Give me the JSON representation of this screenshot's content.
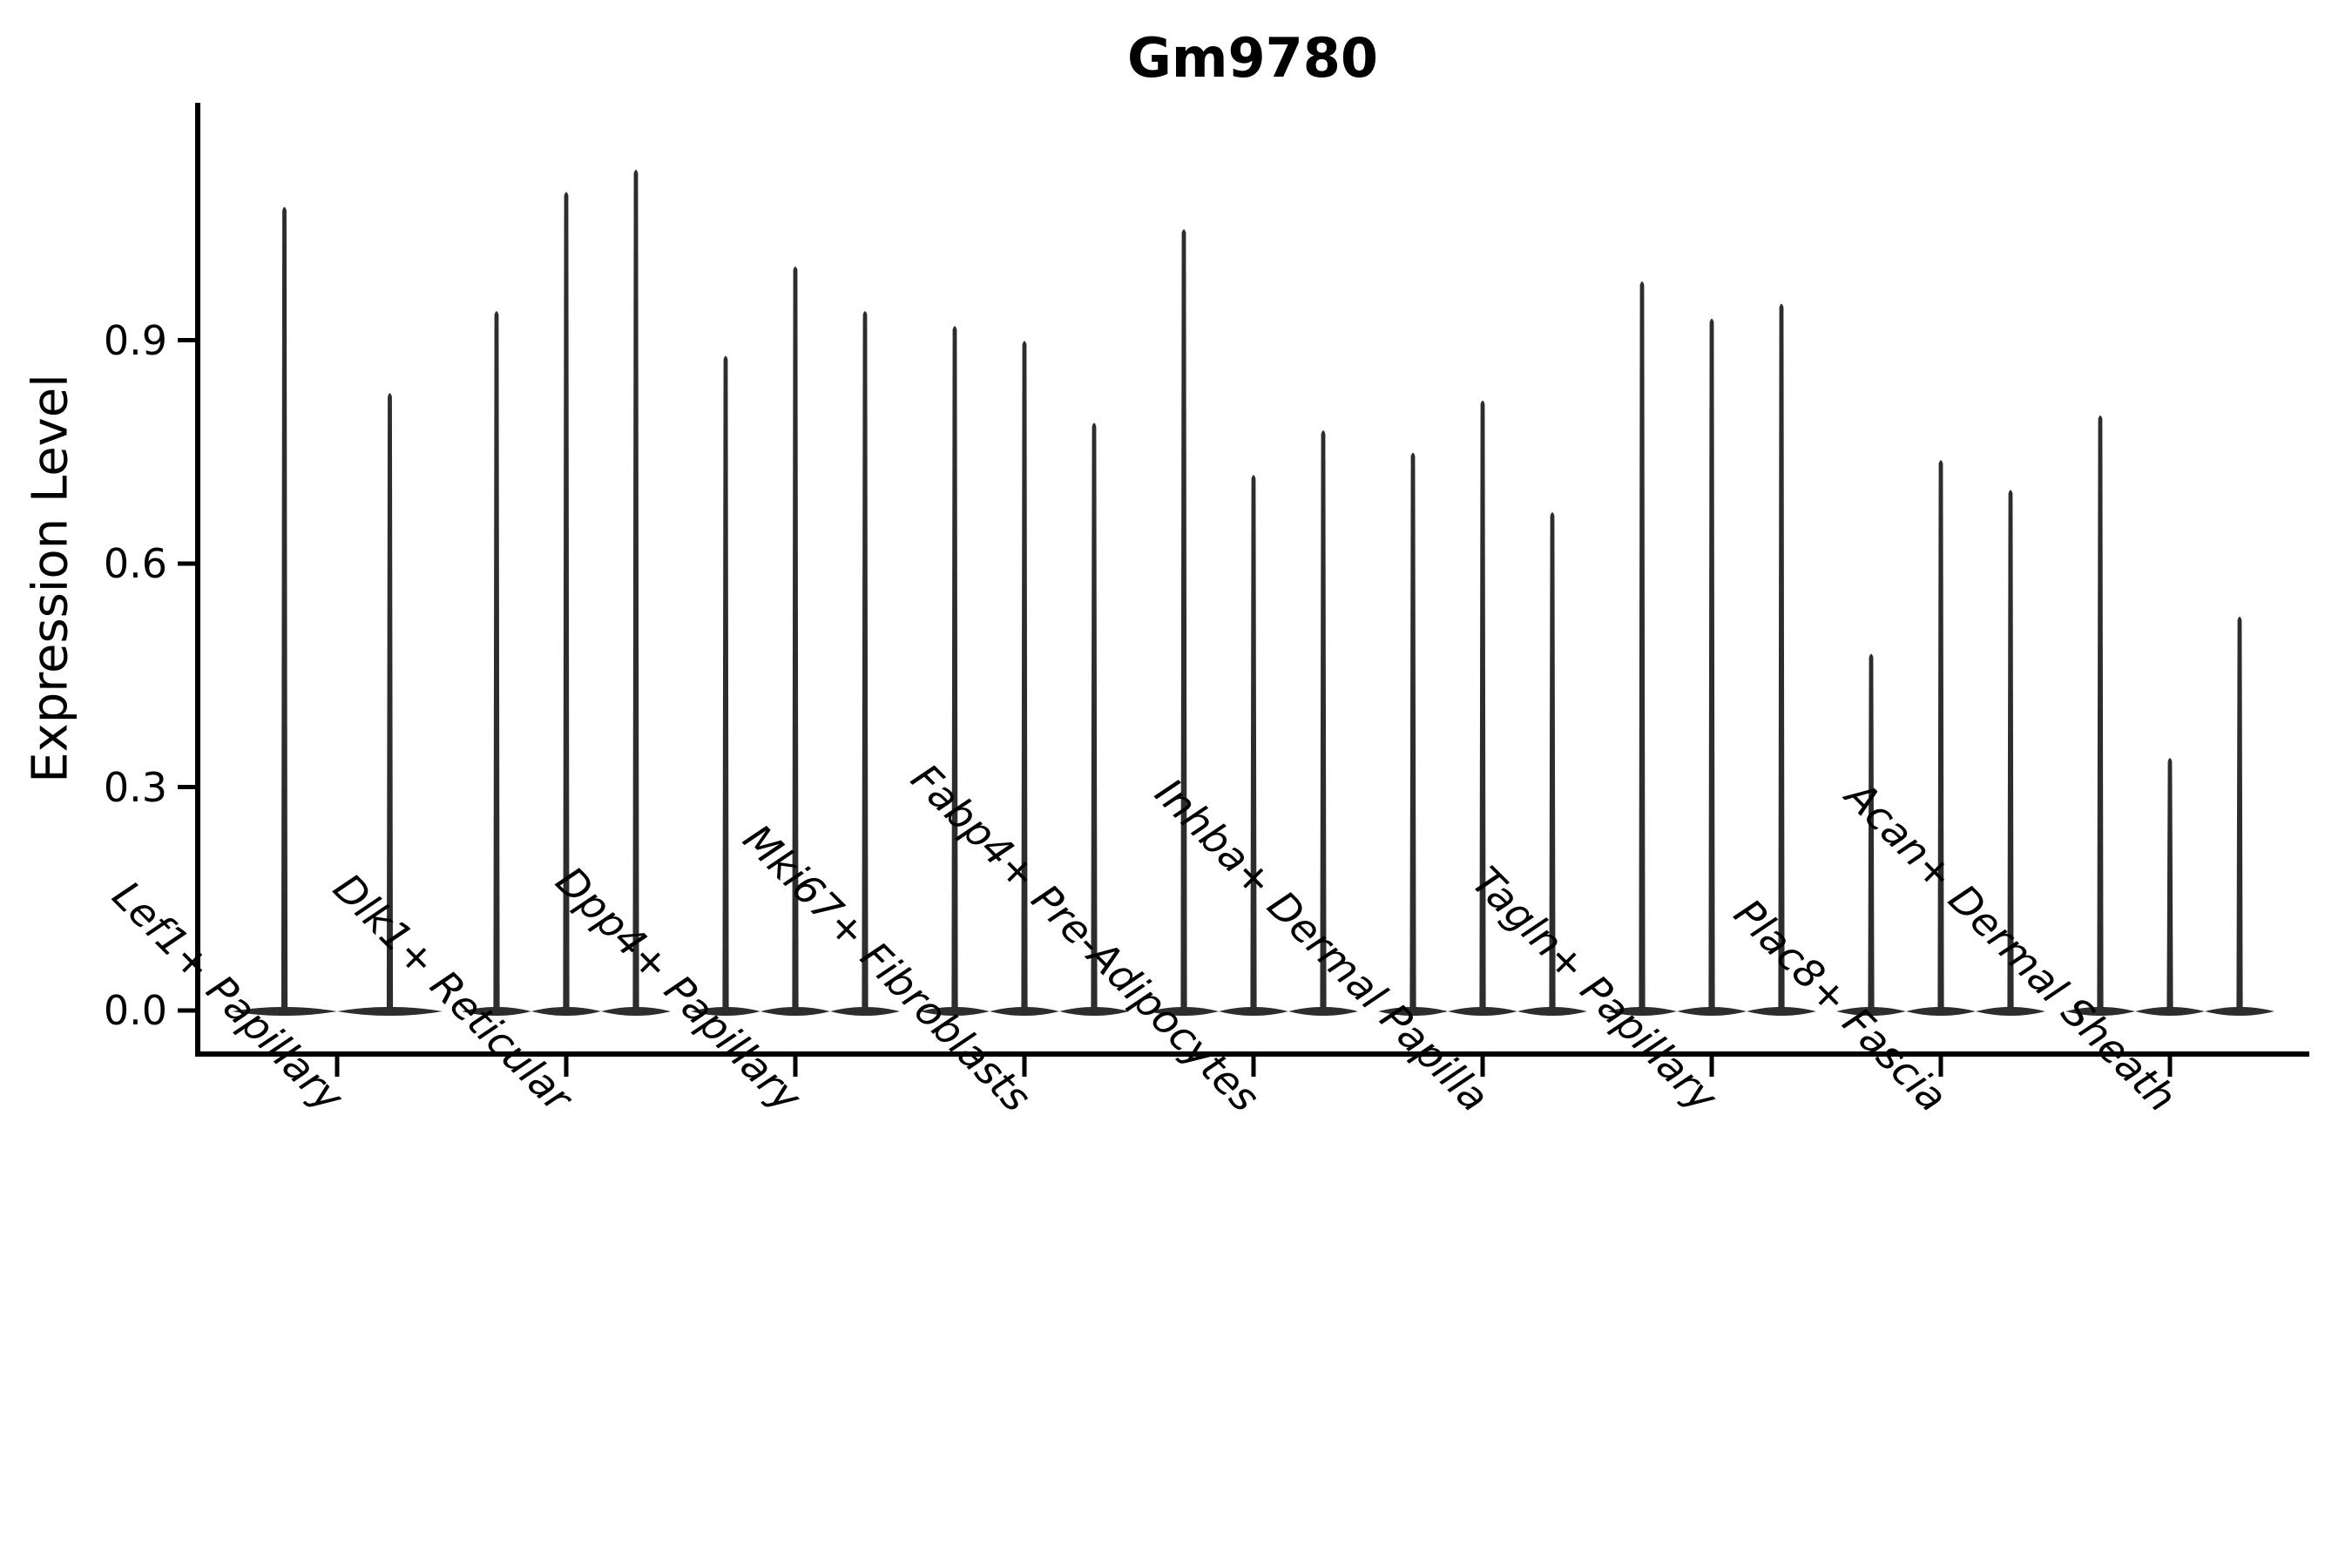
{
  "chart_data": {
    "type": "violin",
    "title": "Gm9780",
    "ylabel": "Expression Level",
    "xlabel": "",
    "ylim": [
      -0.06,
      1.22
    ],
    "yticks": [
      0.0,
      0.3,
      0.6,
      0.9
    ],
    "ytick_labels": [
      "0.0",
      "0.3",
      "0.6",
      "0.9"
    ],
    "grid": false,
    "legend": null,
    "categories": [
      "Lef1+ Papillary",
      "Dlk1+ Reticular",
      "Dpp4+ Papillary",
      "Mki67+ Fibroblasts",
      "Fabp4+ Pre-Adipocytes",
      "Inhba+ Dermal Papilla",
      "Tagln+ Papillary",
      "Plac8+ Fascia",
      "Acan+ Dermal Sheath"
    ],
    "series": [
      {
        "category": "Lef1+ Papillary",
        "violin_max_expression": [
          1.08,
          0.83
        ]
      },
      {
        "category": "Dlk1+ Reticular",
        "violin_max_expression": [
          0.94,
          1.1,
          1.13
        ]
      },
      {
        "category": "Dpp4+ Papillary",
        "violin_max_expression": [
          0.88,
          1.0,
          0.94
        ]
      },
      {
        "category": "Mki67+ Fibroblasts",
        "violin_max_expression": [
          0.92,
          0.9,
          0.79
        ]
      },
      {
        "category": "Fabp4+ Pre-Adipocytes",
        "violin_max_expression": [
          1.05,
          0.72,
          0.78
        ]
      },
      {
        "category": "Inhba+ Dermal Papilla",
        "violin_max_expression": [
          0.75,
          0.82,
          0.67
        ]
      },
      {
        "category": "Tagln+ Papillary",
        "violin_max_expression": [
          0.98,
          0.93,
          0.95
        ]
      },
      {
        "category": "Plac8+ Fascia",
        "violin_max_expression": [
          0.48,
          0.74,
          0.7
        ]
      },
      {
        "category": "Acan+ Dermal Sheath",
        "violin_max_expression": [
          0.8,
          0.34,
          0.53
        ]
      }
    ],
    "description": "Each violin is a thin spike rising from a flat lens at 0, indicating most cells at 0 expression with a tail up to the max.",
    "colors": {
      "violin": "#2d2d2d",
      "axis": "#000000",
      "text": "#000000",
      "background": "#ffffff"
    }
  }
}
